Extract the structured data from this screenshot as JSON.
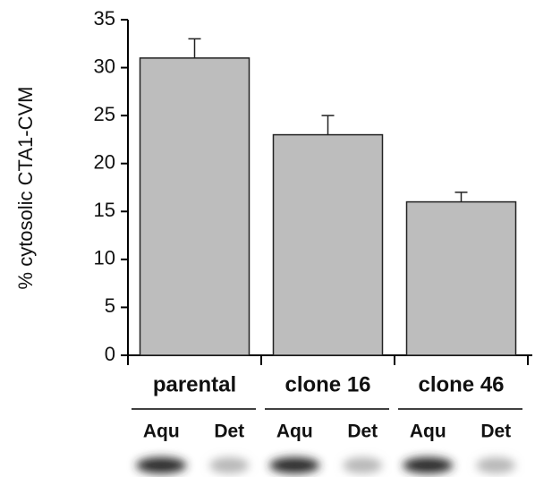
{
  "chart_data": {
    "type": "bar",
    "y_label": "% cytosolic CTA1-CVM",
    "categories": [
      "parental",
      "clone 16",
      "clone 46"
    ],
    "values": [
      31,
      23,
      16
    ],
    "errors": [
      2,
      2,
      1
    ],
    "color": "#bdbdbd",
    "ylim": [
      0,
      35
    ],
    "yticks": [
      0,
      5,
      10,
      15,
      20,
      25,
      30,
      35
    ],
    "lane_labels": [
      "Aqu",
      "Det",
      "Aqu",
      "Det",
      "Aqu",
      "Det"
    ]
  }
}
